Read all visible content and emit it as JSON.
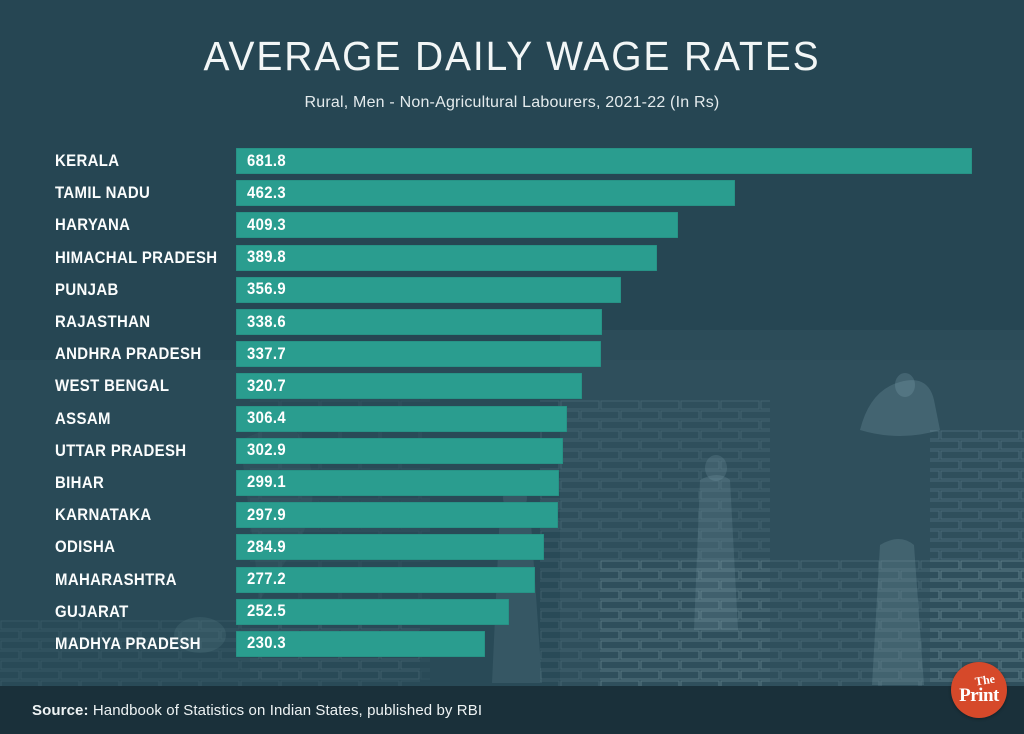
{
  "header": {
    "title": "AVERAGE DAILY WAGE RATES",
    "subtitle": "Rural, Men - Non-Agricultural Labourers, 2021-22 (In Rs)"
  },
  "chart_data": {
    "type": "bar",
    "orientation": "horizontal",
    "title": "AVERAGE DAILY WAGE RATES",
    "subtitle": "Rural, Men - Non-Agricultural Labourers, 2021-22 (In Rs)",
    "categories": [
      "KERALA",
      "TAMIL NADU",
      "HARYANA",
      "HIMACHAL PRADESH",
      "PUNJAB",
      "RAJASTHAN",
      "ANDHRA PRADESH",
      "WEST BENGAL",
      "ASSAM",
      "UTTAR PRADESH",
      "BIHAR",
      "KARNATAKA",
      "ODISHA",
      "MAHARASHTRA",
      "GUJARAT",
      "MADHYA PRADESH"
    ],
    "values": [
      681.8,
      462.3,
      409.3,
      389.8,
      356.9,
      338.6,
      337.7,
      320.7,
      306.4,
      302.9,
      299.1,
      297.9,
      284.9,
      277.2,
      252.5,
      230.3
    ],
    "xlim": [
      0,
      681.8
    ],
    "value_labels": "inside-left",
    "grid": false,
    "legend": false,
    "bar_color": "#2a9d8f"
  },
  "footer": {
    "source_label": "Source:",
    "source_text": " Handbook of Statistics on Indian States, published by RBI"
  },
  "branding": {
    "logo_line1": "The",
    "logo_line2": "Print",
    "logo_color": "#d6492a"
  },
  "colors": {
    "background": "#264653",
    "bar": "#2a9d8f",
    "footer_band": "#1a303a",
    "text": "#ffffff"
  }
}
